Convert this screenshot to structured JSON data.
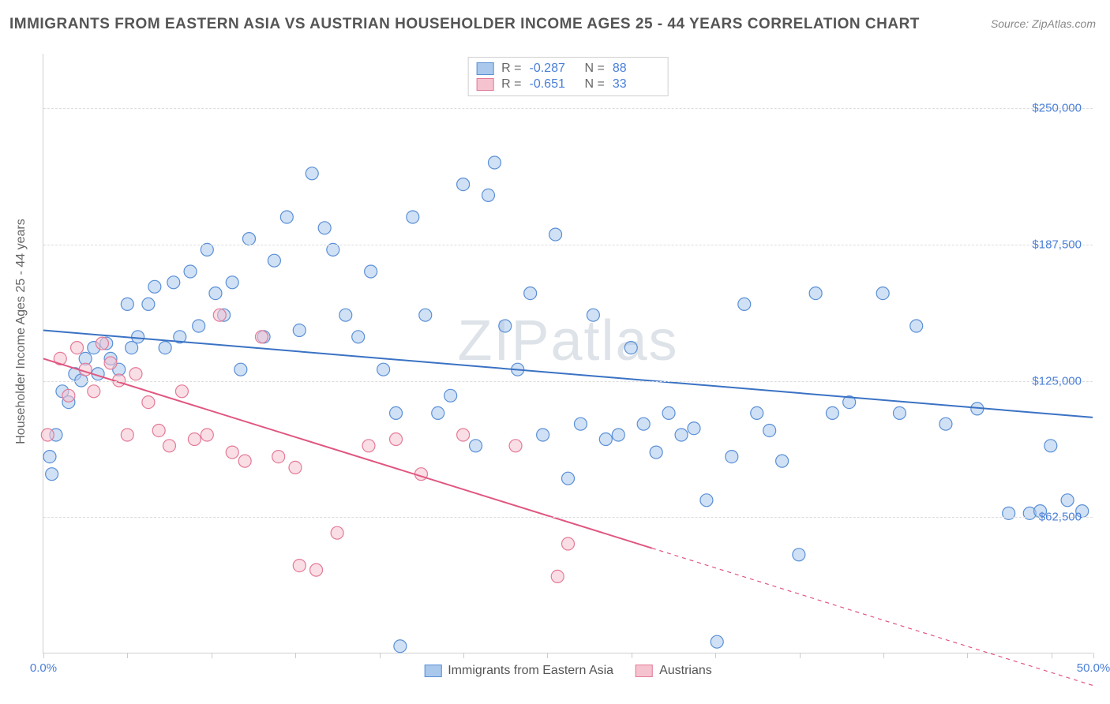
{
  "title": "IMMIGRANTS FROM EASTERN ASIA VS AUSTRIAN HOUSEHOLDER INCOME AGES 25 - 44 YEARS CORRELATION CHART",
  "source": "Source: ZipAtlas.com",
  "watermark": "ZIPatlas",
  "yaxis_label": "Householder Income Ages 25 - 44 years",
  "chart": {
    "type": "scatter",
    "xlim": [
      0,
      50
    ],
    "ylim": [
      0,
      275000
    ],
    "x_ticks": [
      0,
      4,
      8,
      12,
      16,
      20,
      24,
      28,
      32,
      36,
      40,
      44,
      48,
      50
    ],
    "x_tick_labels": {
      "0": "0.0%",
      "50": "50.0%"
    },
    "y_gridlines": [
      62500,
      125000,
      187500,
      250000
    ],
    "y_tick_labels": {
      "62500": "$62,500",
      "125000": "$125,000",
      "187500": "$187,500",
      "250000": "$250,000"
    },
    "background_color": "#ffffff",
    "grid_color": "#dddddd",
    "axis_color": "#d0d0d0",
    "tick_label_color": "#4a7fd8",
    "yaxis_label_color": "#666666",
    "marker_radius": 8,
    "marker_opacity": 0.55,
    "line_width": 2,
    "series": [
      {
        "name": "Immigrants from Eastern Asia",
        "fill": "#a9c8ec",
        "stroke": "#5a8fd6",
        "line_color": "#3a72c4",
        "R": "-0.287",
        "N": "88",
        "trend": {
          "x1": 0,
          "y1": 148000,
          "x2": 50,
          "y2": 108000,
          "dash_from_x": null
        },
        "points": [
          [
            0.3,
            90000
          ],
          [
            0.4,
            82000
          ],
          [
            0.6,
            100000
          ],
          [
            0.9,
            120000
          ],
          [
            1.2,
            115000
          ],
          [
            1.5,
            128000
          ],
          [
            1.8,
            125000
          ],
          [
            2.0,
            135000
          ],
          [
            2.4,
            140000
          ],
          [
            2.6,
            128000
          ],
          [
            3.0,
            142000
          ],
          [
            3.2,
            135000
          ],
          [
            3.6,
            130000
          ],
          [
            4.0,
            160000
          ],
          [
            4.2,
            140000
          ],
          [
            4.5,
            145000
          ],
          [
            5.0,
            160000
          ],
          [
            5.3,
            168000
          ],
          [
            5.8,
            140000
          ],
          [
            6.2,
            170000
          ],
          [
            6.5,
            145000
          ],
          [
            7.0,
            175000
          ],
          [
            7.4,
            150000
          ],
          [
            7.8,
            185000
          ],
          [
            8.2,
            165000
          ],
          [
            8.6,
            155000
          ],
          [
            9.0,
            170000
          ],
          [
            9.4,
            130000
          ],
          [
            9.8,
            190000
          ],
          [
            10.5,
            145000
          ],
          [
            11.0,
            180000
          ],
          [
            11.6,
            200000
          ],
          [
            12.2,
            148000
          ],
          [
            12.8,
            220000
          ],
          [
            13.4,
            195000
          ],
          [
            13.8,
            185000
          ],
          [
            14.4,
            155000
          ],
          [
            15.0,
            145000
          ],
          [
            15.6,
            175000
          ],
          [
            16.2,
            130000
          ],
          [
            16.8,
            110000
          ],
          [
            17.0,
            3000
          ],
          [
            17.6,
            200000
          ],
          [
            18.2,
            155000
          ],
          [
            18.8,
            110000
          ],
          [
            19.4,
            118000
          ],
          [
            20.0,
            215000
          ],
          [
            20.6,
            95000
          ],
          [
            21.2,
            210000
          ],
          [
            21.5,
            225000
          ],
          [
            22.0,
            150000
          ],
          [
            22.6,
            130000
          ],
          [
            23.2,
            165000
          ],
          [
            23.8,
            100000
          ],
          [
            24.4,
            192000
          ],
          [
            25.0,
            80000
          ],
          [
            25.6,
            105000
          ],
          [
            26.2,
            155000
          ],
          [
            26.8,
            98000
          ],
          [
            27.4,
            100000
          ],
          [
            28.0,
            140000
          ],
          [
            28.6,
            105000
          ],
          [
            29.2,
            92000
          ],
          [
            29.8,
            110000
          ],
          [
            30.4,
            100000
          ],
          [
            31.0,
            103000
          ],
          [
            31.6,
            70000
          ],
          [
            32.1,
            5000
          ],
          [
            32.8,
            90000
          ],
          [
            33.4,
            160000
          ],
          [
            34.0,
            110000
          ],
          [
            34.6,
            102000
          ],
          [
            35.2,
            88000
          ],
          [
            36.0,
            45000
          ],
          [
            36.8,
            165000
          ],
          [
            37.6,
            110000
          ],
          [
            38.4,
            115000
          ],
          [
            40.0,
            165000
          ],
          [
            40.8,
            110000
          ],
          [
            41.6,
            150000
          ],
          [
            43.0,
            105000
          ],
          [
            44.5,
            112000
          ],
          [
            46.0,
            64000
          ],
          [
            47.0,
            64000
          ],
          [
            47.5,
            65000
          ],
          [
            48.0,
            95000
          ],
          [
            48.8,
            70000
          ],
          [
            49.5,
            65000
          ]
        ]
      },
      {
        "name": "Austrians",
        "fill": "#f5c3cf",
        "stroke": "#e37a97",
        "line_color": "#e05680",
        "R": "-0.651",
        "N": "33",
        "trend": {
          "x1": 0,
          "y1": 135000,
          "x2": 50,
          "y2": -15000,
          "dash_from_x": 29
        },
        "points": [
          [
            0.2,
            100000
          ],
          [
            0.8,
            135000
          ],
          [
            1.2,
            118000
          ],
          [
            1.6,
            140000
          ],
          [
            2.0,
            130000
          ],
          [
            2.4,
            120000
          ],
          [
            2.8,
            142000
          ],
          [
            3.2,
            133000
          ],
          [
            3.6,
            125000
          ],
          [
            4.0,
            100000
          ],
          [
            4.4,
            128000
          ],
          [
            5.0,
            115000
          ],
          [
            5.5,
            102000
          ],
          [
            6.0,
            95000
          ],
          [
            6.6,
            120000
          ],
          [
            7.2,
            98000
          ],
          [
            7.8,
            100000
          ],
          [
            8.4,
            155000
          ],
          [
            9.0,
            92000
          ],
          [
            9.6,
            88000
          ],
          [
            10.4,
            145000
          ],
          [
            11.2,
            90000
          ],
          [
            12.0,
            85000
          ],
          [
            12.2,
            40000
          ],
          [
            13.0,
            38000
          ],
          [
            14.0,
            55000
          ],
          [
            15.5,
            95000
          ],
          [
            16.8,
            98000
          ],
          [
            18.0,
            82000
          ],
          [
            20.0,
            100000
          ],
          [
            22.5,
            95000
          ],
          [
            24.5,
            35000
          ],
          [
            25.0,
            50000
          ]
        ]
      }
    ]
  },
  "legend_top_labels": {
    "R": "R =",
    "N": "N ="
  },
  "colors": {
    "title": "#555555",
    "source": "#888888",
    "watermark": "#dde3e8"
  }
}
